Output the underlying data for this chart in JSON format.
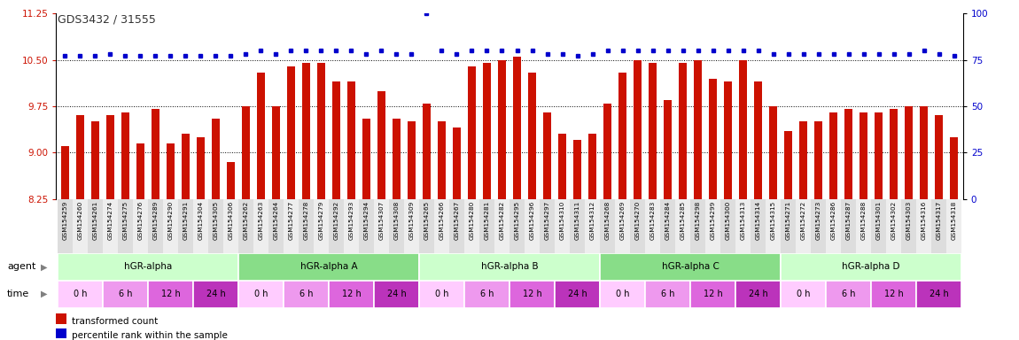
{
  "title": "GDS3432 / 31555",
  "samples": [
    "GSM154259",
    "GSM154260",
    "GSM154261",
    "GSM154274",
    "GSM154275",
    "GSM154276",
    "GSM154289",
    "GSM154290",
    "GSM154291",
    "GSM154304",
    "GSM154305",
    "GSM154306",
    "GSM154262",
    "GSM154263",
    "GSM154264",
    "GSM154277",
    "GSM154278",
    "GSM154279",
    "GSM154292",
    "GSM154293",
    "GSM154294",
    "GSM154307",
    "GSM154308",
    "GSM154309",
    "GSM154265",
    "GSM154266",
    "GSM154267",
    "GSM154280",
    "GSM154281",
    "GSM154282",
    "GSM154295",
    "GSM154296",
    "GSM154297",
    "GSM154310",
    "GSM154311",
    "GSM154312",
    "GSM154268",
    "GSM154269",
    "GSM154270",
    "GSM154283",
    "GSM154284",
    "GSM154285",
    "GSM154298",
    "GSM154299",
    "GSM154300",
    "GSM154313",
    "GSM154314",
    "GSM154315",
    "GSM154271",
    "GSM154272",
    "GSM154273",
    "GSM154286",
    "GSM154287",
    "GSM154288",
    "GSM154301",
    "GSM154302",
    "GSM154303",
    "GSM154316",
    "GSM154317",
    "GSM154318"
  ],
  "bar_values": [
    9.1,
    9.6,
    9.5,
    9.6,
    9.65,
    9.15,
    9.7,
    9.15,
    9.3,
    9.25,
    9.55,
    8.85,
    9.75,
    10.3,
    9.75,
    10.4,
    10.45,
    10.45,
    10.15,
    10.15,
    9.55,
    10.0,
    9.55,
    9.5,
    9.8,
    9.5,
    9.4,
    10.4,
    10.45,
    10.5,
    10.55,
    10.3,
    9.65,
    9.3,
    9.2,
    9.3,
    9.8,
    10.3,
    10.5,
    10.45,
    9.85,
    10.45,
    10.5,
    10.2,
    10.15,
    10.5,
    10.15,
    9.75,
    9.35,
    9.5,
    9.5,
    9.65,
    9.7,
    9.65,
    9.65,
    9.7,
    9.75,
    9.75,
    9.6,
    9.25
  ],
  "percentile_values": [
    77,
    77,
    77,
    78,
    77,
    77,
    77,
    77,
    77,
    77,
    77,
    77,
    78,
    80,
    78,
    80,
    80,
    80,
    80,
    80,
    78,
    80,
    78,
    78,
    100,
    80,
    78,
    80,
    80,
    80,
    80,
    80,
    78,
    78,
    77,
    78,
    80,
    80,
    80,
    80,
    80,
    80,
    80,
    80,
    80,
    80,
    80,
    78,
    78,
    78,
    78,
    78,
    78,
    78,
    78,
    78,
    78,
    80,
    78,
    77
  ],
  "agent_groups": [
    {
      "label": "hGR-alpha",
      "start": 0,
      "end": 12,
      "color": "#ccffcc"
    },
    {
      "label": "hGR-alpha A",
      "start": 12,
      "end": 24,
      "color": "#88dd88"
    },
    {
      "label": "hGR-alpha B",
      "start": 24,
      "end": 36,
      "color": "#ccffcc"
    },
    {
      "label": "hGR-alpha C",
      "start": 36,
      "end": 48,
      "color": "#88dd88"
    },
    {
      "label": "hGR-alpha D",
      "start": 48,
      "end": 60,
      "color": "#ccffcc"
    }
  ],
  "time_colors": [
    "#ffccff",
    "#ee99ee",
    "#dd66dd",
    "#bb33bb"
  ],
  "time_labels": [
    "0 h",
    "6 h",
    "12 h",
    "24 h"
  ],
  "ylim_left": [
    8.25,
    11.25
  ],
  "ylim_right": [
    0,
    100
  ],
  "yticks_left": [
    8.25,
    9.0,
    9.75,
    10.5,
    11.25
  ],
  "yticks_right": [
    0,
    25,
    50,
    75,
    100
  ],
  "gridlines": [
    9.0,
    9.75,
    10.5
  ],
  "bar_color": "#cc1100",
  "dot_color": "#0000cc",
  "left_tick_color": "#cc1100",
  "right_tick_color": "#0000cc"
}
